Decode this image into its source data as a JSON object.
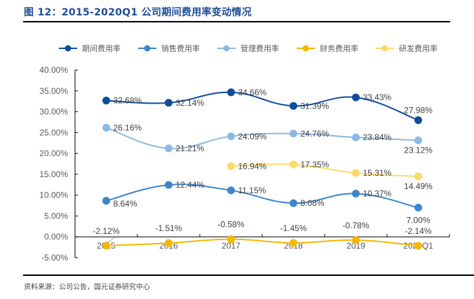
{
  "title": "图 12：2015-2020Q1 公司期间费用率变动情况",
  "source": "资料来源：公司公告，国元证券研究中心",
  "chart_data": {
    "type": "line",
    "title": "2015-2020Q1 公司期间费用率变动情况",
    "xlabel": "",
    "ylabel": "",
    "categories": [
      "2015",
      "2016",
      "2017",
      "2018",
      "2019",
      "2020Q1"
    ],
    "ylim": [
      -5,
      40
    ],
    "yticks": [
      -5,
      0,
      5,
      10,
      15,
      20,
      25,
      30,
      35,
      40
    ],
    "ytick_labels": [
      "-5.00%",
      "0.00%",
      "5.00%",
      "10.00%",
      "15.00%",
      "20.00%",
      "25.00%",
      "30.00%",
      "35.00%",
      "40.00%"
    ],
    "legend_position": "top",
    "grid": false,
    "series": [
      {
        "name": "期间费用率",
        "color": "#0e4c9e",
        "values": [
          32.68,
          32.14,
          34.66,
          31.39,
          33.43,
          27.98
        ],
        "labels": [
          "32.68%",
          "32.14%",
          "34.66%",
          "31.39%",
          "33.43%",
          "27.98%"
        ]
      },
      {
        "name": "销售费用率",
        "color": "#3c85cc",
        "values": [
          8.64,
          12.44,
          11.15,
          8.08,
          10.37,
          7.0
        ],
        "labels": [
          "8.64%",
          "12.44%",
          "11.15%",
          "8.08%",
          "10.37%",
          "7.00%"
        ]
      },
      {
        "name": "管理费用率",
        "color": "#8cb9e3",
        "values": [
          26.16,
          21.21,
          24.09,
          24.76,
          23.84,
          23.12
        ],
        "labels": [
          "26.16%",
          "21.21%",
          "24.09%",
          "24.76%",
          "23.84%",
          "23.12%"
        ]
      },
      {
        "name": "财务费用率",
        "color": "#f5b800",
        "values": [
          -2.12,
          -1.51,
          -0.58,
          -1.45,
          -0.78,
          -2.14
        ],
        "labels": [
          "-2.12%",
          "-1.51%",
          "-0.58%",
          "-1.45%",
          "-0.78%",
          "-2.14%"
        ]
      },
      {
        "name": "研发费用率",
        "color": "#fbd96a",
        "values": [
          null,
          null,
          16.94,
          17.35,
          15.31,
          14.49
        ],
        "labels": [
          null,
          null,
          "16.94%",
          "17.35%",
          "15.31%",
          "14.49%"
        ]
      }
    ]
  }
}
